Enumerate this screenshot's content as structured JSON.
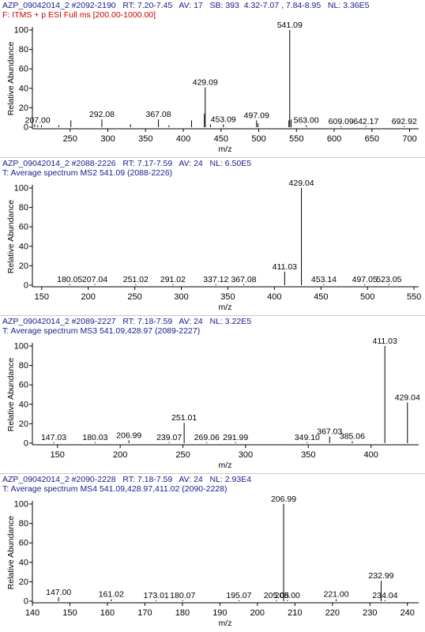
{
  "chart_data": [
    {
      "type": "bar",
      "header_line1": "AZP_09042014_2 #2092-2190   RT: 7.20-7.45   AV: 17   SB: 393  4.32-7.07 , 7.84-8.95   NL: 3.36E5",
      "header_line2": "F: ITMS + p ESI Full ms [200.00-1000.00]",
      "header_line2_color": "#cc0000",
      "xlabel": "m/z",
      "ylabel": "Relative Abundance",
      "xlim": [
        200,
        712
      ],
      "ylim": [
        0,
        100
      ],
      "xticks": [
        250,
        300,
        350,
        400,
        450,
        500,
        550,
        600,
        650,
        700
      ],
      "yticks": [
        0,
        20,
        40,
        60,
        80,
        100
      ],
      "peaks": [
        {
          "x": 203,
          "y": 3
        },
        {
          "x": 207.0,
          "y": 2,
          "label": "207.00"
        },
        {
          "x": 212,
          "y": 2
        },
        {
          "x": 235,
          "y": 2
        },
        {
          "x": 251,
          "y": 7
        },
        {
          "x": 292.08,
          "y": 8,
          "label": "292.08"
        },
        {
          "x": 330,
          "y": 3
        },
        {
          "x": 367.08,
          "y": 8,
          "label": "367.08"
        },
        {
          "x": 381,
          "y": 2
        },
        {
          "x": 411,
          "y": 7
        },
        {
          "x": 428,
          "y": 14
        },
        {
          "x": 429.09,
          "y": 41,
          "label": "429.09"
        },
        {
          "x": 436,
          "y": 3
        },
        {
          "x": 453.09,
          "y": 3,
          "label": "453.09"
        },
        {
          "x": 497.09,
          "y": 7,
          "label": "497.09"
        },
        {
          "x": 499,
          "y": 4
        },
        {
          "x": 540,
          "y": 7
        },
        {
          "x": 541.09,
          "y": 100,
          "label": "541.09"
        },
        {
          "x": 543,
          "y": 8
        },
        {
          "x": 563.0,
          "y": 2,
          "label": "563.00"
        },
        {
          "x": 609.09,
          "y": 1,
          "label": "609.09"
        },
        {
          "x": 642.17,
          "y": 1,
          "label": "642.17"
        },
        {
          "x": 692.92,
          "y": 1,
          "label": "692.92"
        }
      ]
    },
    {
      "type": "bar",
      "header_line1": "AZP_09042014_2 #2088-2226   RT: 7.17-7.59   AV: 24   NL: 6.50E5",
      "header_line2": "T: Average spectrum MS2 541.09 (2088-2226)",
      "header_line2_color": "#1a1a8c",
      "xlabel": "m/z",
      "ylabel": "Relative Abundance",
      "xlim": [
        140,
        555
      ],
      "ylim": [
        0,
        100
      ],
      "xticks": [
        150,
        200,
        250,
        300,
        350,
        400,
        450,
        500,
        550
      ],
      "yticks": [
        0,
        20,
        40,
        60,
        80,
        100
      ],
      "peaks": [
        {
          "x": 180.05,
          "y": 1,
          "label": "180.05"
        },
        {
          "x": 207.04,
          "y": 1,
          "label": "207.04"
        },
        {
          "x": 251.02,
          "y": 1,
          "label": "251.02"
        },
        {
          "x": 291.02,
          "y": 1,
          "label": "291.02"
        },
        {
          "x": 337.12,
          "y": 1,
          "label": "337.12"
        },
        {
          "x": 367.08,
          "y": 1,
          "label": "367.08"
        },
        {
          "x": 411.03,
          "y": 14,
          "label": "411.03"
        },
        {
          "x": 429.04,
          "y": 100,
          "label": "429.04"
        },
        {
          "x": 453.14,
          "y": 1,
          "label": "453.14"
        },
        {
          "x": 497.05,
          "y": 1,
          "label": "497.05"
        },
        {
          "x": 523.05,
          "y": 1,
          "label": "523.05"
        }
      ]
    },
    {
      "type": "bar",
      "header_line1": "AZP_09042014_2 #2089-2227   RT: 7.18-7.59   AV: 24   NL: 3.22E5",
      "header_line2": "T: Average spectrum MS3 541.09,428.97 (2089-2227)",
      "header_line2_color": "#1a1a8c",
      "xlabel": "m/z",
      "ylabel": "Relative Abundance",
      "xlim": [
        130,
        438
      ],
      "ylim": [
        0,
        100
      ],
      "xticks": [
        150,
        200,
        250,
        300,
        350,
        400
      ],
      "yticks": [
        0,
        20,
        40,
        60,
        80,
        100
      ],
      "peaks": [
        {
          "x": 147.03,
          "y": 1,
          "label": "147.03"
        },
        {
          "x": 180.03,
          "y": 1,
          "label": "180.03"
        },
        {
          "x": 206.99,
          "y": 3,
          "label": "206.99"
        },
        {
          "x": 239.07,
          "y": 1,
          "label": "239.07"
        },
        {
          "x": 251.01,
          "y": 21,
          "label": "251.01"
        },
        {
          "x": 269.06,
          "y": 1,
          "label": "269.06"
        },
        {
          "x": 291.99,
          "y": 1,
          "label": "291.99"
        },
        {
          "x": 349.1,
          "y": 1,
          "label": "349.10"
        },
        {
          "x": 367.03,
          "y": 7,
          "label": "367.03"
        },
        {
          "x": 385.06,
          "y": 2,
          "label": "385.06"
        },
        {
          "x": 411.03,
          "y": 100,
          "label": "411.03"
        },
        {
          "x": 429.04,
          "y": 42,
          "label": "429.04"
        }
      ]
    },
    {
      "type": "bar",
      "header_line1": "AZP_09042014_2 #2090-2228   RT: 7.18-7.59   AV: 24   NL: 2.93E4",
      "header_line2": "T: Average spectrum MS4 541.09,428.97,411.02 (2090-2228)",
      "header_line2_color": "#1a1a8c",
      "xlabel": "m/z",
      "ylabel": "Relative Abundance",
      "xlim": [
        140,
        243
      ],
      "ylim": [
        0,
        100
      ],
      "xticks": [
        140,
        150,
        160,
        170,
        180,
        190,
        200,
        210,
        220,
        230,
        240
      ],
      "yticks": [
        0,
        20,
        40,
        60,
        80,
        100
      ],
      "peaks": [
        {
          "x": 147.0,
          "y": 4,
          "label": "147.00"
        },
        {
          "x": 161.02,
          "y": 2,
          "label": "161.02"
        },
        {
          "x": 173.01,
          "y": 1,
          "label": "173.01"
        },
        {
          "x": 180.07,
          "y": 1,
          "label": "180.07"
        },
        {
          "x": 195.07,
          "y": 1,
          "label": "195.07"
        },
        {
          "x": 205.05,
          "y": 1,
          "label": "205.05"
        },
        {
          "x": 206.99,
          "y": 100,
          "label": "206.99"
        },
        {
          "x": 208.0,
          "y": 1,
          "label": "208.00"
        },
        {
          "x": 221.0,
          "y": 2,
          "label": "221.00"
        },
        {
          "x": 232.99,
          "y": 21,
          "label": "232.99"
        },
        {
          "x": 234.04,
          "y": 1,
          "label": "234.04"
        }
      ]
    }
  ]
}
